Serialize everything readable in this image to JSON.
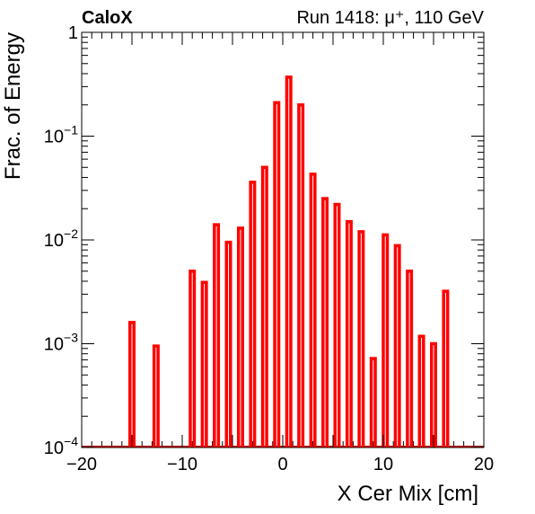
{
  "header": {
    "experiment": "CaloX",
    "run_info": "Run 1418: μ⁺, 110 GeV"
  },
  "chart_data": {
    "type": "bar",
    "xlabel": "X Cer Mix [cm]",
    "ylabel": "Frac. of Energy",
    "xlim": [
      -20,
      20
    ],
    "ylim": [
      0.0001,
      1
    ],
    "yscale": "log",
    "x_ticks": [
      "−20",
      "−10",
      "0",
      "10",
      "20"
    ],
    "x_tick_values": [
      -20,
      -10,
      0,
      10,
      20
    ],
    "y_ticks": [
      {
        "value": 1,
        "base": "1",
        "exp": ""
      },
      {
        "value": 0.1,
        "base": "10",
        "exp": "−1"
      },
      {
        "value": 0.01,
        "base": "10",
        "exp": "−2"
      },
      {
        "value": 0.001,
        "base": "10",
        "exp": "−3"
      },
      {
        "value": 0.0001,
        "base": "10",
        "exp": "−4"
      }
    ],
    "bin_width": 0.4,
    "x": [
      -15.0,
      -12.6,
      -9.0,
      -7.8,
      -6.6,
      -5.4,
      -4.2,
      -3.0,
      -1.8,
      -0.6,
      0.6,
      1.8,
      3.0,
      4.2,
      5.4,
      6.6,
      7.8,
      9.0,
      10.2,
      11.4,
      12.6,
      13.8,
      15.0,
      16.2
    ],
    "values": [
      0.0016,
      0.00095,
      0.005,
      0.0039,
      0.014,
      0.0095,
      0.013,
      0.036,
      0.05,
      0.21,
      0.37,
      0.2,
      0.043,
      0.025,
      0.022,
      0.015,
      0.012,
      0.00072,
      0.0112,
      0.0088,
      0.005,
      0.00118,
      0.001,
      0.0032
    ],
    "line_color": "#ff0000",
    "baseline_color": "#990000",
    "grid": false
  }
}
